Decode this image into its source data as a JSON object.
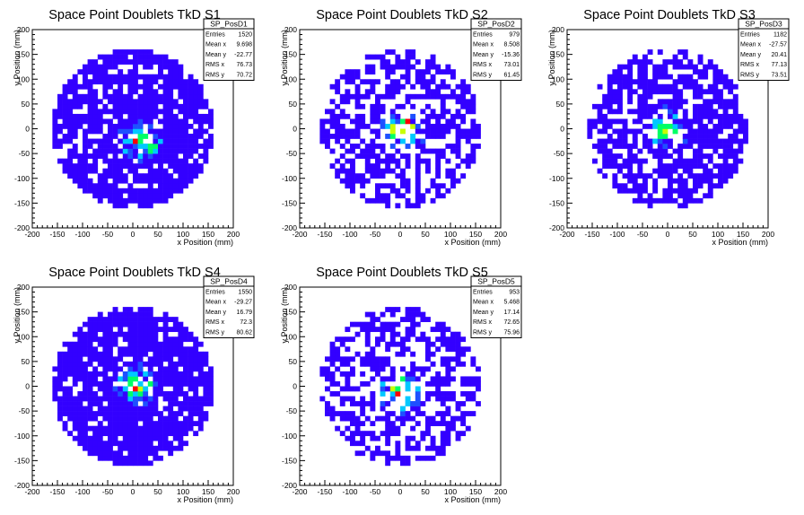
{
  "chart_data": [
    {
      "type": "heatmap",
      "title": "Space Point Doublets TkD S1",
      "xlabel": "x Position (mm)",
      "ylabel": "y Position (mm)",
      "xlim": [
        -200,
        200
      ],
      "ylim": [
        -200,
        200
      ],
      "x_ticks": [
        "-200",
        "-150",
        "-100",
        "-50",
        "0",
        "50",
        "100",
        "150",
        "200"
      ],
      "y_ticks": [
        "-200",
        "-150",
        "-100",
        "-50",
        "0",
        "50",
        "100",
        "150",
        "200"
      ],
      "stats": {
        "name": "SP_PosD1",
        "rows": [
          {
            "label": "Entries",
            "value": "1520"
          },
          {
            "label": "Mean x",
            "value": "9.698"
          },
          {
            "label": "Mean y",
            "value": "-22.77"
          },
          {
            "label": "RMS x",
            "value": "76.73"
          },
          {
            "label": "RMS y",
            "value": "70.72"
          }
        ]
      },
      "entries": 1520,
      "mean_x": 9.698,
      "mean_y": -22.77,
      "rms_x": 76.73,
      "rms_y": 70.72,
      "occupancy": 0.82,
      "hotspot": [
        15,
        -25
      ],
      "hot_intensity": 0.85
    },
    {
      "type": "heatmap",
      "title": "Space Point Doublets TkD S2",
      "xlabel": "x Position (mm)",
      "ylabel": "y Position (mm)",
      "xlim": [
        -200,
        200
      ],
      "ylim": [
        -200,
        200
      ],
      "x_ticks": [
        "-200",
        "-150",
        "-100",
        "-50",
        "0",
        "50",
        "100",
        "150",
        "200"
      ],
      "y_ticks": [
        "-200",
        "-150",
        "-100",
        "-50",
        "0",
        "50",
        "100",
        "150",
        "200"
      ],
      "stats": {
        "name": "SP_PosD2",
        "rows": [
          {
            "label": "Entries",
            "value": "979"
          },
          {
            "label": "Mean x",
            "value": "8.508"
          },
          {
            "label": "Mean y",
            "value": "-15.36"
          },
          {
            "label": "RMS x",
            "value": "73.01"
          },
          {
            "label": "RMS y",
            "value": "61.45"
          }
        ]
      },
      "entries": 979,
      "mean_x": 8.508,
      "mean_y": -15.36,
      "rms_x": 73.01,
      "rms_y": 61.45,
      "occupancy": 0.55,
      "hotspot": [
        5,
        0
      ],
      "hot_intensity": 1.0
    },
    {
      "type": "heatmap",
      "title": "Space Point Doublets TkD S3",
      "xlabel": "x Position (mm)",
      "ylabel": "y Position (mm)",
      "xlim": [
        -200,
        200
      ],
      "ylim": [
        -200,
        200
      ],
      "x_ticks": [
        "-200",
        "-150",
        "-100",
        "-50",
        "0",
        "50",
        "100",
        "150",
        "200"
      ],
      "y_ticks": [
        "-200",
        "-150",
        "-100",
        "-50",
        "0",
        "50",
        "100",
        "150",
        "200"
      ],
      "stats": {
        "name": "SP_PosD3",
        "rows": [
          {
            "label": "Entries",
            "value": "1182"
          },
          {
            "label": "Mean x",
            "value": "-27.57"
          },
          {
            "label": "Mean y",
            "value": "20.41"
          },
          {
            "label": "RMS x",
            "value": "77.13"
          },
          {
            "label": "RMS y",
            "value": "73.51"
          }
        ]
      },
      "entries": 1182,
      "mean_x": -27.57,
      "mean_y": 20.41,
      "rms_x": 77.13,
      "rms_y": 73.51,
      "occupancy": 0.68,
      "hotspot": [
        0,
        0
      ],
      "hot_intensity": 0.8
    },
    {
      "type": "heatmap",
      "title": "Space Point Doublets TkD S4",
      "xlabel": "x Position (mm)",
      "ylabel": "y Position (mm)",
      "xlim": [
        -200,
        200
      ],
      "ylim": [
        -200,
        200
      ],
      "x_ticks": [
        "-200",
        "-150",
        "-100",
        "-50",
        "0",
        "50",
        "100",
        "150",
        "200"
      ],
      "y_ticks": [
        "-200",
        "-150",
        "-100",
        "-50",
        "0",
        "50",
        "100",
        "150",
        "200"
      ],
      "stats": {
        "name": "SP_PosD4",
        "rows": [
          {
            "label": "Entries",
            "value": "1550"
          },
          {
            "label": "Mean x",
            "value": "-29.27"
          },
          {
            "label": "Mean y",
            "value": "16.79"
          },
          {
            "label": "RMS x",
            "value": "72.3"
          },
          {
            "label": "RMS y",
            "value": "80.62"
          }
        ]
      },
      "entries": 1550,
      "mean_x": -29.27,
      "mean_y": 16.79,
      "rms_x": 72.3,
      "rms_y": 80.62,
      "occupancy": 0.85,
      "hotspot": [
        5,
        0
      ],
      "hot_intensity": 0.9
    },
    {
      "type": "heatmap",
      "title": "Space Point Doublets TkD S5",
      "xlabel": "x Position (mm)",
      "ylabel": "y Position (mm)",
      "xlim": [
        -200,
        200
      ],
      "ylim": [
        -200,
        200
      ],
      "x_ticks": [
        "-200",
        "-150",
        "-100",
        "-50",
        "0",
        "50",
        "100",
        "150",
        "200"
      ],
      "y_ticks": [
        "-200",
        "-150",
        "-100",
        "-50",
        "0",
        "50",
        "100",
        "150",
        "200"
      ],
      "stats": {
        "name": "SP_PosD5",
        "rows": [
          {
            "label": "Entries",
            "value": "953"
          },
          {
            "label": "Mean x",
            "value": "5.468"
          },
          {
            "label": "Mean y",
            "value": "17.14"
          },
          {
            "label": "RMS x",
            "value": "72.65"
          },
          {
            "label": "RMS y",
            "value": "75.96"
          }
        ]
      },
      "entries": 953,
      "mean_x": 5.468,
      "mean_y": 17.14,
      "rms_x": 72.65,
      "rms_y": 75.96,
      "occupancy": 0.52,
      "hotspot": [
        0,
        -10
      ],
      "hot_intensity": 0.95
    }
  ],
  "colors": {
    "background": "#ffffff",
    "axis": "#000000",
    "palette": [
      "#3300ff",
      "#1e50ff",
      "#00c8ff",
      "#00ff64",
      "#c8ff00",
      "#ff0000"
    ]
  }
}
